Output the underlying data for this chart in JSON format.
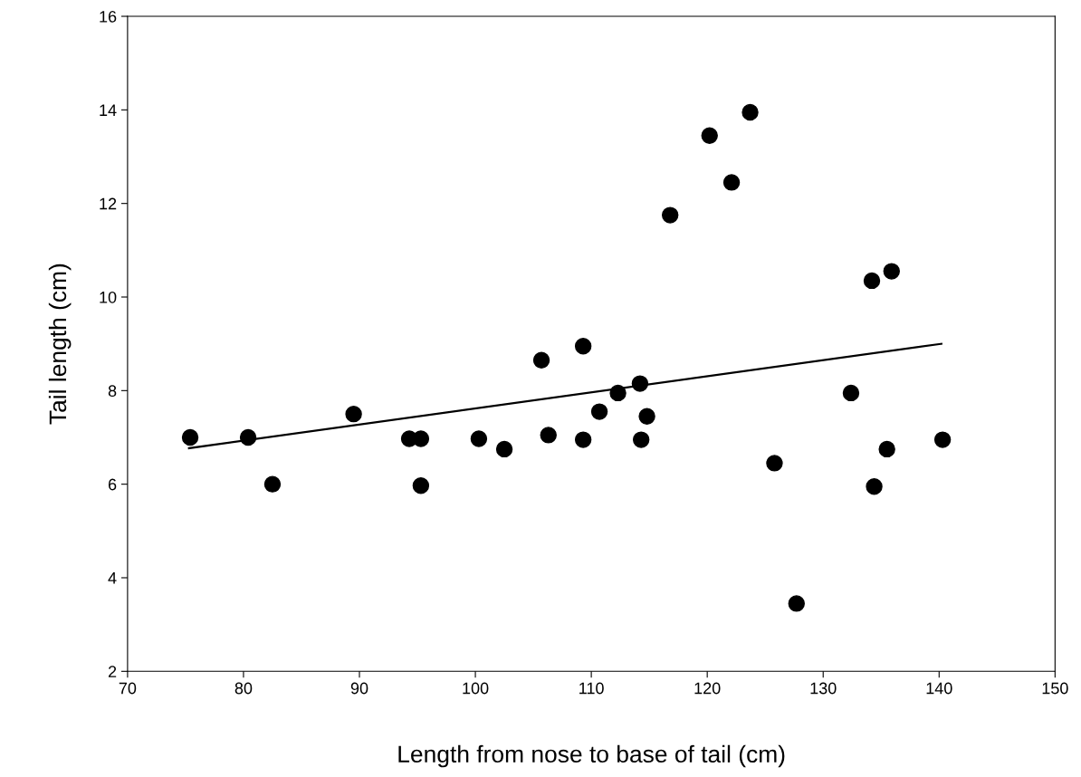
{
  "chart_data": {
    "type": "scatter",
    "xlabel": "Length from nose to base of tail (cm)",
    "ylabel": "Tail length (cm)",
    "xlim": [
      70,
      150
    ],
    "xticks": [
      70,
      80,
      90,
      100,
      110,
      120,
      130,
      140,
      150
    ],
    "ylim": [
      2,
      16
    ],
    "yticks": [
      2,
      4,
      6,
      8,
      10,
      12,
      14,
      16
    ],
    "grid": false,
    "legend": false,
    "series": [
      {
        "marker": "circle",
        "color": "#000000",
        "x": [
          75.4,
          80.4,
          82.5,
          89.5,
          94.3,
          95.3,
          95.3,
          100.3,
          102.5,
          105.7,
          106.3,
          109.3,
          109.3,
          110.7,
          112.3,
          114.2,
          114.3,
          114.8,
          116.8,
          120.2,
          122.1,
          123.7,
          125.8,
          127.7,
          132.4,
          134.2,
          134.4,
          135.5,
          135.9,
          140.3
        ],
        "values": [
          7.0,
          7.0,
          6.0,
          7.5,
          6.97,
          6.97,
          5.97,
          6.97,
          6.75,
          8.65,
          7.05,
          6.95,
          8.95,
          7.55,
          7.95,
          8.15,
          6.95,
          7.45,
          11.75,
          13.45,
          12.45,
          13.95,
          6.45,
          3.45,
          7.95,
          10.35,
          5.95,
          6.75,
          10.55,
          6.95
        ]
      },
      {
        "type": "line",
        "color": "#000000",
        "x": [
          75.3,
          140.2
        ],
        "values": [
          6.77,
          9.0
        ],
        "marker": "none"
      }
    ]
  }
}
